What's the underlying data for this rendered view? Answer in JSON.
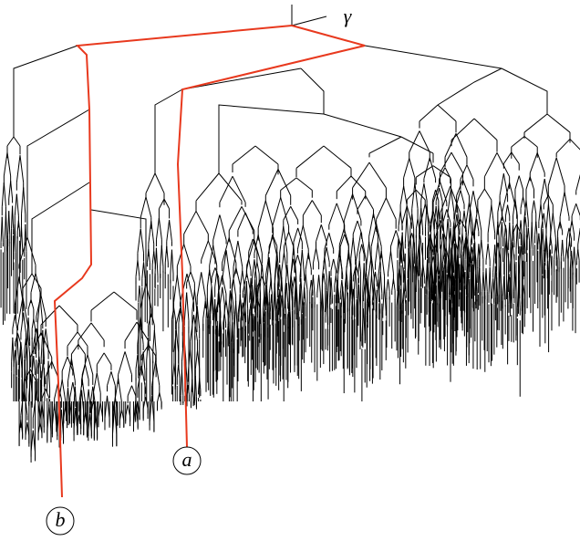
{
  "root_label": "γ",
  "leaves": [
    {
      "label": "a"
    },
    {
      "label": "b"
    }
  ]
}
